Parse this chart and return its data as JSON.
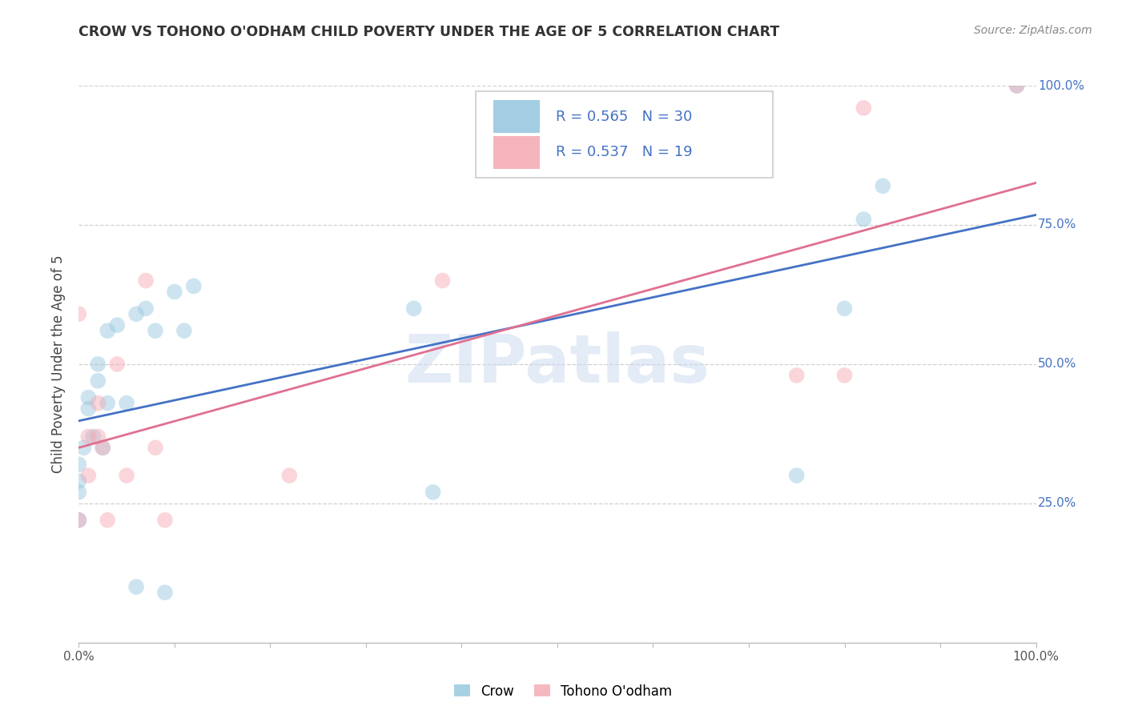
{
  "title": "CROW VS TOHONO O'ODHAM CHILD POVERTY UNDER THE AGE OF 5 CORRELATION CHART",
  "source": "Source: ZipAtlas.com",
  "ylabel": "Child Poverty Under the Age of 5",
  "crow_R": 0.565,
  "crow_N": 30,
  "tohono_R": 0.537,
  "tohono_N": 19,
  "crow_color": "#92c5de",
  "tohono_color": "#f4a6b0",
  "crow_line_color": "#4472c4",
  "tohono_line_color": "#e07090",
  "legend_text_color": "#4472c4",
  "crow_points_x": [
    0.0,
    0.0,
    0.0,
    0.0,
    0.005,
    0.01,
    0.01,
    0.015,
    0.02,
    0.02,
    0.025,
    0.03,
    0.03,
    0.04,
    0.05,
    0.06,
    0.06,
    0.07,
    0.08,
    0.09,
    0.1,
    0.11,
    0.12,
    0.35,
    0.37,
    0.75,
    0.8,
    0.82,
    0.84,
    0.98
  ],
  "crow_points_y": [
    0.22,
    0.27,
    0.29,
    0.32,
    0.35,
    0.42,
    0.44,
    0.37,
    0.47,
    0.5,
    0.35,
    0.56,
    0.43,
    0.57,
    0.43,
    0.59,
    0.1,
    0.6,
    0.56,
    0.09,
    0.63,
    0.56,
    0.64,
    0.6,
    0.27,
    0.3,
    0.6,
    0.76,
    0.82,
    1.0
  ],
  "tohono_points_x": [
    0.0,
    0.0,
    0.01,
    0.01,
    0.02,
    0.02,
    0.025,
    0.03,
    0.04,
    0.05,
    0.07,
    0.08,
    0.09,
    0.22,
    0.38,
    0.75,
    0.8,
    0.82,
    0.98
  ],
  "tohono_points_y": [
    0.59,
    0.22,
    0.3,
    0.37,
    0.37,
    0.43,
    0.35,
    0.22,
    0.5,
    0.3,
    0.65,
    0.35,
    0.22,
    0.3,
    0.65,
    0.48,
    0.48,
    0.96,
    1.0
  ],
  "watermark": "ZIPatlas",
  "marker_size": 200,
  "marker_alpha": 0.45,
  "background_color": "#ffffff",
  "grid_color": "#d0d0d0",
  "right_tick_color": "#4472c4"
}
